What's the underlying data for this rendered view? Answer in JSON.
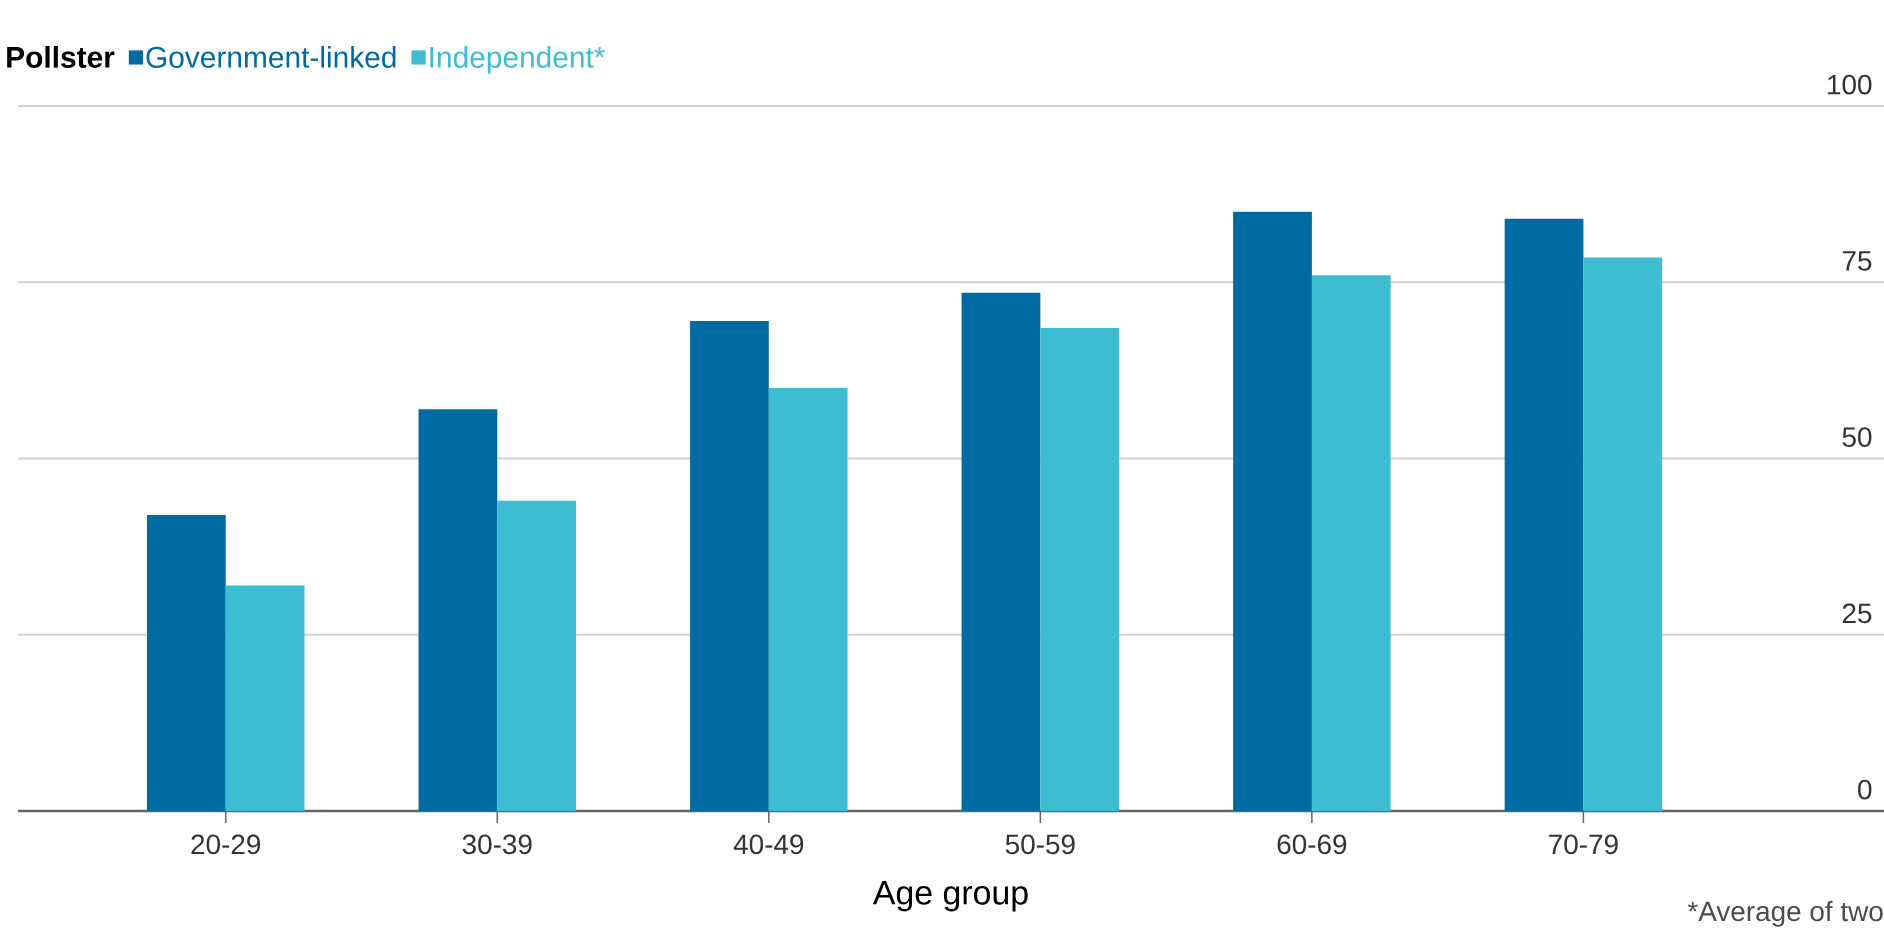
{
  "chart_data": {
    "type": "bar",
    "legend_title": "Pollster",
    "xlabel": "Age group",
    "annotations": [
      "*Average of two"
    ],
    "categories": [
      "20-29",
      "30-39",
      "40-49",
      "50-59",
      "60-69",
      "70-79"
    ],
    "series": [
      {
        "name": "Government-linked",
        "color": "#006ba2",
        "values": [
          42,
          57,
          69.5,
          73.5,
          85,
          84
        ]
      },
      {
        "name": "Independent*",
        "color": "#3ebcd2",
        "values": [
          32,
          44,
          60,
          68.5,
          76,
          78.5
        ]
      }
    ],
    "ylim": [
      0,
      100
    ],
    "yticks": [
      0,
      25,
      50,
      75,
      100
    ],
    "grid": "y",
    "legend": "top left"
  }
}
